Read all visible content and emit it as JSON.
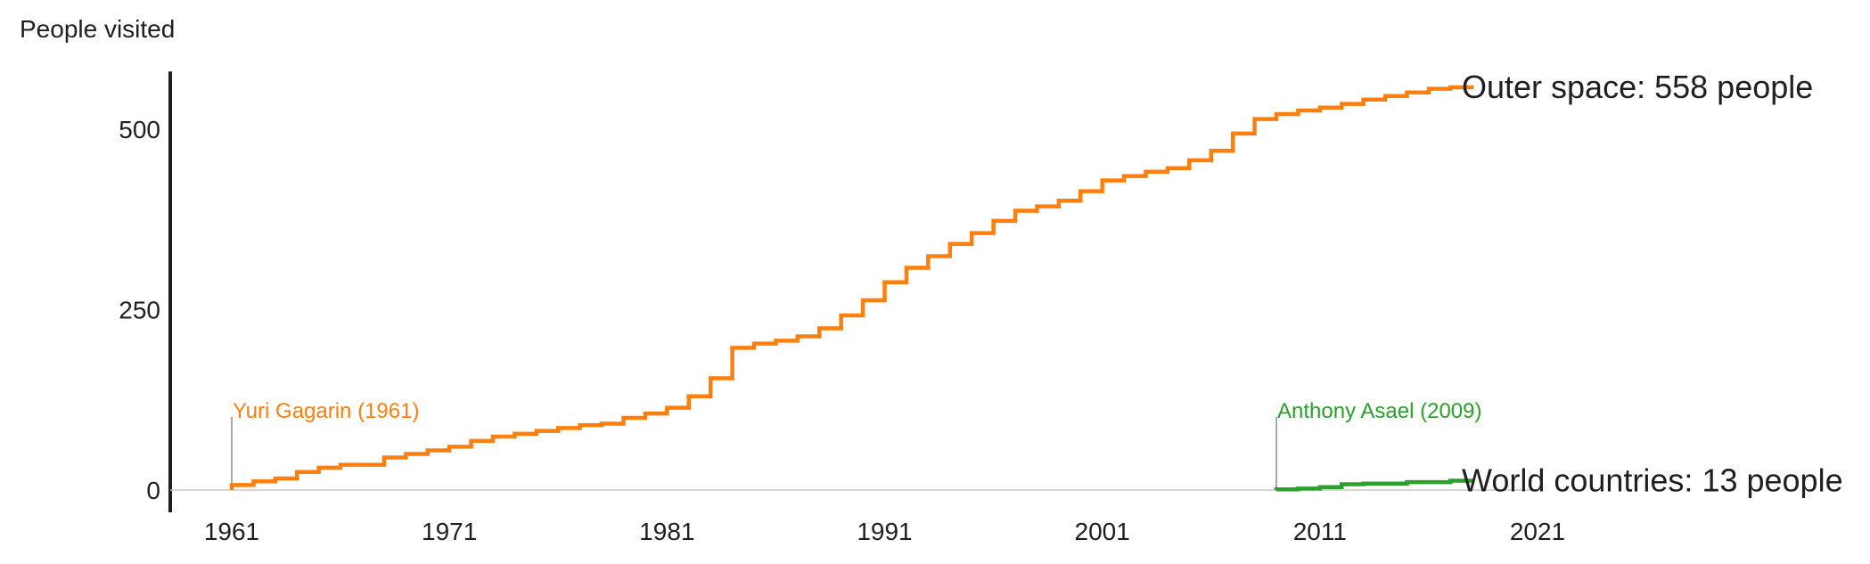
{
  "chart_data": {
    "type": "line",
    "ylabel": "People visited",
    "xlim": [
      1961,
      2021
    ],
    "ylim": [
      0,
      580
    ],
    "x_ticks": [
      "1961",
      "1971",
      "1981",
      "1991",
      "2001",
      "2011",
      "2021"
    ],
    "y_ticks": [
      "0",
      "250",
      "500"
    ],
    "grid": false,
    "series": [
      {
        "name": "Outer space",
        "color": "#ff7f0e",
        "step": true,
        "end_label": "Outer space: 558 people",
        "x": [
          1961,
          1962,
          1963,
          1964,
          1965,
          1966,
          1968,
          1969,
          1970,
          1971,
          1972,
          1973,
          1974,
          1975,
          1976,
          1977,
          1978,
          1979,
          1980,
          1981,
          1982,
          1983,
          1984,
          1985,
          1986,
          1987,
          1988,
          1989,
          1990,
          1991,
          1992,
          1993,
          1994,
          1995,
          1996,
          1997,
          1998,
          1999,
          2000,
          2001,
          2002,
          2003,
          2004,
          2005,
          2006,
          2007,
          2008,
          2009,
          2010,
          2011,
          2012,
          2013,
          2014,
          2015,
          2016,
          2017
        ],
        "y": [
          7,
          12,
          16,
          25,
          31,
          35,
          45,
          50,
          55,
          60,
          68,
          74,
          78,
          82,
          86,
          90,
          92,
          100,
          106,
          114,
          130,
          155,
          197,
          203,
          207,
          213,
          224,
          242,
          263,
          288,
          308,
          324,
          341,
          356,
          373,
          387,
          393,
          401,
          414,
          429,
          435,
          441,
          446,
          457,
          470,
          494,
          514,
          521,
          526,
          530,
          535,
          541,
          546,
          551,
          556,
          558
        ]
      },
      {
        "name": "World countries",
        "color": "#2ca02c",
        "step": true,
        "end_label": "World countries: 13 people",
        "x": [
          2009,
          2010,
          2011,
          2012,
          2013,
          2014,
          2015,
          2016,
          2017
        ],
        "y": [
          1,
          2,
          4,
          8,
          9,
          9,
          11,
          11,
          13
        ]
      }
    ],
    "annotations": [
      {
        "text": "Yuri Gagarin (1961)",
        "x": 1961,
        "color": "#ff7f0e"
      },
      {
        "text": "Anthony Asael (2009)",
        "x": 2009,
        "color": "#2ca02c"
      }
    ]
  }
}
